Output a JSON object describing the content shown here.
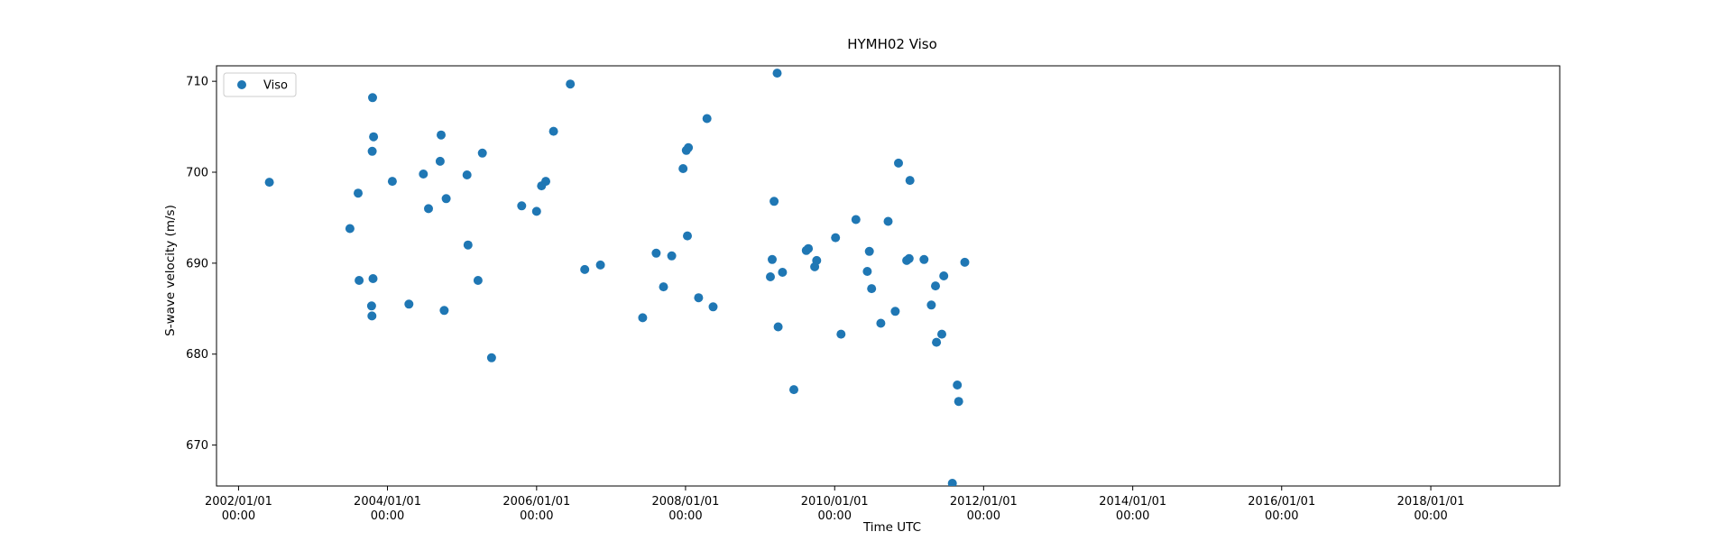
{
  "chart_data": {
    "type": "scatter",
    "title": "HYMH02 Viso",
    "xlabel": "Time UTC",
    "ylabel": "S-wave velocity (m/s)",
    "x_axis_kind": "date",
    "xlim": [
      "2001-09-15",
      "2019-09-25"
    ],
    "ylim": [
      665.5,
      711.7
    ],
    "x_ticks": [
      {
        "date": "2002-01-01",
        "label": "2002/01/01",
        "sublabel": "00:00"
      },
      {
        "date": "2004-01-01",
        "label": "2004/01/01",
        "sublabel": "00:00"
      },
      {
        "date": "2006-01-01",
        "label": "2006/01/01",
        "sublabel": "00:00"
      },
      {
        "date": "2008-01-01",
        "label": "2008/01/01",
        "sublabel": "00:00"
      },
      {
        "date": "2010-01-01",
        "label": "2010/01/01",
        "sublabel": "00:00"
      },
      {
        "date": "2012-01-01",
        "label": "2012/01/01",
        "sublabel": "00:00"
      },
      {
        "date": "2014-01-01",
        "label": "2014/01/01",
        "sublabel": "00:00"
      },
      {
        "date": "2016-01-01",
        "label": "2016/01/01",
        "sublabel": "00:00"
      },
      {
        "date": "2018-01-01",
        "label": "2018/01/01",
        "sublabel": "00:00"
      }
    ],
    "y_ticks": [
      670,
      680,
      690,
      700,
      710
    ],
    "grid": false,
    "legend": {
      "position": "upper-left",
      "entries": [
        "Viso"
      ]
    },
    "colors": {
      "series": "#1f77b4",
      "axes": "#000000",
      "background": "#ffffff"
    },
    "series": [
      {
        "name": "Viso",
        "points": [
          [
            "2002-06-01",
            698.9
          ],
          [
            "2003-07-01",
            693.8
          ],
          [
            "2003-08-10",
            697.7
          ],
          [
            "2003-08-15",
            688.1
          ],
          [
            "2003-10-20",
            708.2
          ],
          [
            "2003-10-25",
            703.9
          ],
          [
            "2003-10-18",
            702.3
          ],
          [
            "2003-10-22",
            688.3
          ],
          [
            "2003-10-15",
            685.3
          ],
          [
            "2003-10-17",
            684.2
          ],
          [
            "2004-01-25",
            699.0
          ],
          [
            "2004-04-15",
            685.5
          ],
          [
            "2004-06-25",
            699.8
          ],
          [
            "2004-07-20",
            696.0
          ],
          [
            "2004-09-20",
            704.1
          ],
          [
            "2004-09-15",
            701.2
          ],
          [
            "2004-10-15",
            697.1
          ],
          [
            "2004-10-05",
            684.8
          ],
          [
            "2005-01-25",
            699.7
          ],
          [
            "2005-01-30",
            692.0
          ],
          [
            "2005-03-20",
            688.1
          ],
          [
            "2005-04-10",
            702.1
          ],
          [
            "2005-05-25",
            679.6
          ],
          [
            "2005-10-20",
            696.3
          ],
          [
            "2006-01-01",
            695.7
          ],
          [
            "2006-01-25",
            698.5
          ],
          [
            "2006-02-15",
            699.0
          ],
          [
            "2006-03-25",
            704.5
          ],
          [
            "2006-06-15",
            709.7
          ],
          [
            "2006-08-25",
            689.3
          ],
          [
            "2006-11-10",
            689.8
          ],
          [
            "2007-06-05",
            684.0
          ],
          [
            "2007-08-10",
            691.1
          ],
          [
            "2007-09-15",
            687.4
          ],
          [
            "2007-10-25",
            690.8
          ],
          [
            "2007-12-20",
            700.4
          ],
          [
            "2008-01-05",
            702.4
          ],
          [
            "2008-01-15",
            702.7
          ],
          [
            "2008-01-10",
            693.0
          ],
          [
            "2008-03-05",
            686.2
          ],
          [
            "2008-04-15",
            705.9
          ],
          [
            "2008-05-15",
            685.2
          ],
          [
            "2009-02-20",
            688.5
          ],
          [
            "2009-03-01",
            690.4
          ],
          [
            "2009-03-10",
            696.8
          ],
          [
            "2009-03-25",
            710.9
          ],
          [
            "2009-03-30",
            683.0
          ],
          [
            "2009-04-20",
            689.0
          ],
          [
            "2009-06-15",
            676.1
          ],
          [
            "2009-08-15",
            691.4
          ],
          [
            "2009-08-25",
            691.6
          ],
          [
            "2009-09-25",
            689.6
          ],
          [
            "2009-10-05",
            690.3
          ],
          [
            "2010-01-05",
            692.8
          ],
          [
            "2010-02-01",
            682.2
          ],
          [
            "2010-04-15",
            694.8
          ],
          [
            "2010-06-10",
            689.1
          ],
          [
            "2010-06-20",
            691.3
          ],
          [
            "2010-07-01",
            687.2
          ],
          [
            "2010-08-15",
            683.4
          ],
          [
            "2010-09-20",
            694.6
          ],
          [
            "2010-10-25",
            684.7
          ],
          [
            "2010-11-10",
            701.0
          ],
          [
            "2010-12-20",
            690.3
          ],
          [
            "2011-01-01",
            690.5
          ],
          [
            "2011-01-05",
            699.1
          ],
          [
            "2011-03-15",
            690.4
          ],
          [
            "2011-04-20",
            685.4
          ],
          [
            "2011-05-10",
            687.5
          ],
          [
            "2011-05-15",
            681.3
          ],
          [
            "2011-06-10",
            682.2
          ],
          [
            "2011-06-20",
            688.6
          ],
          [
            "2011-08-01",
            665.8
          ],
          [
            "2011-08-25",
            676.6
          ],
          [
            "2011-09-01",
            674.8
          ],
          [
            "2011-10-01",
            690.1
          ]
        ]
      }
    ]
  }
}
